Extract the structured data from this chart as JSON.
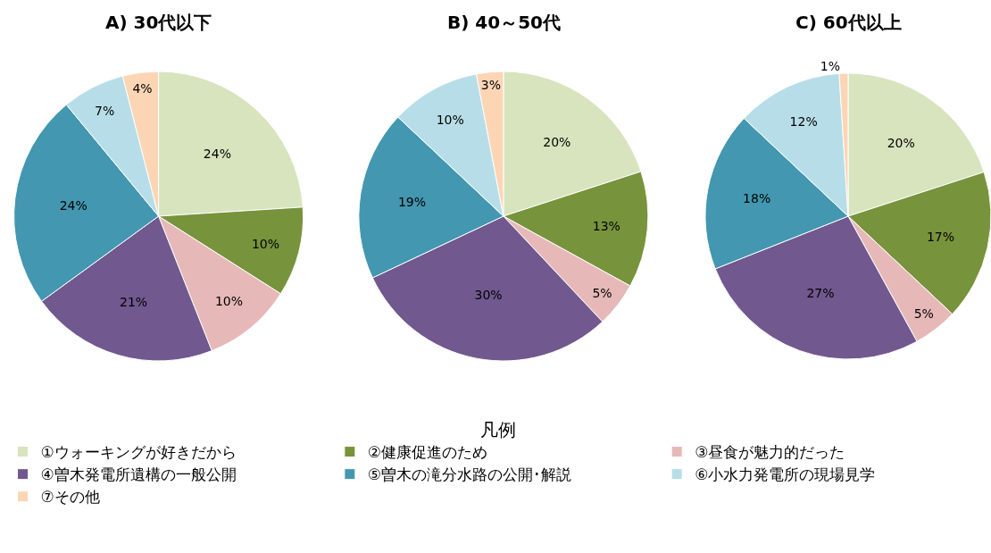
{
  "chart_data": [
    {
      "type": "pie",
      "title": "A) 30代以下",
      "legend": "bottom",
      "legend_title": "凡例",
      "categories": [
        "①ウォーキングが好きだから",
        "②健康促進のため",
        "③昼食が魅力的だった",
        "④曽木発電所遺構の一般公開",
        "⑤曽木の滝分水路の公開･解説",
        "⑥小水力発電所の現場見学",
        "⑦その他"
      ],
      "values": [
        24,
        10,
        10,
        21,
        24,
        7,
        4
      ],
      "value_labels": [
        "24%",
        "10%",
        "10%",
        "21%",
        "24%",
        "7%",
        "4%"
      ],
      "colors": [
        "#d7e4bd",
        "#77933c",
        "#e6b9b8",
        "#71588f",
        "#4397b0",
        "#b7dee8",
        "#fcd5b5"
      ]
    },
    {
      "type": "pie",
      "title": "B) 40～50代",
      "categories": [
        null,
        null,
        null,
        null,
        null,
        null,
        null
      ],
      "values": [
        20,
        13,
        5,
        30,
        19,
        10,
        3
      ],
      "value_labels": [
        "20%",
        "13%",
        "5%",
        "30%",
        "19%",
        "10%",
        "3%"
      ],
      "colors": [
        "#d7e4bd",
        "#77933c",
        "#e6b9b8",
        "#71588f",
        "#4397b0",
        "#b7dee8",
        "#fcd5b5"
      ]
    },
    {
      "type": "pie",
      "title": "C) 60代以上",
      "categories": [
        null,
        null,
        null,
        null,
        null,
        null,
        null
      ],
      "values": [
        20,
        17,
        5,
        27,
        18,
        12,
        1
      ],
      "value_labels": [
        "20%",
        "17%",
        "5%",
        "27%",
        "18%",
        "12%",
        "1%"
      ],
      "colors": [
        "#d7e4bd",
        "#77933c",
        "#e6b9b8",
        "#71588f",
        "#4397b0",
        "#b7dee8",
        "#fcd5b5"
      ]
    }
  ]
}
